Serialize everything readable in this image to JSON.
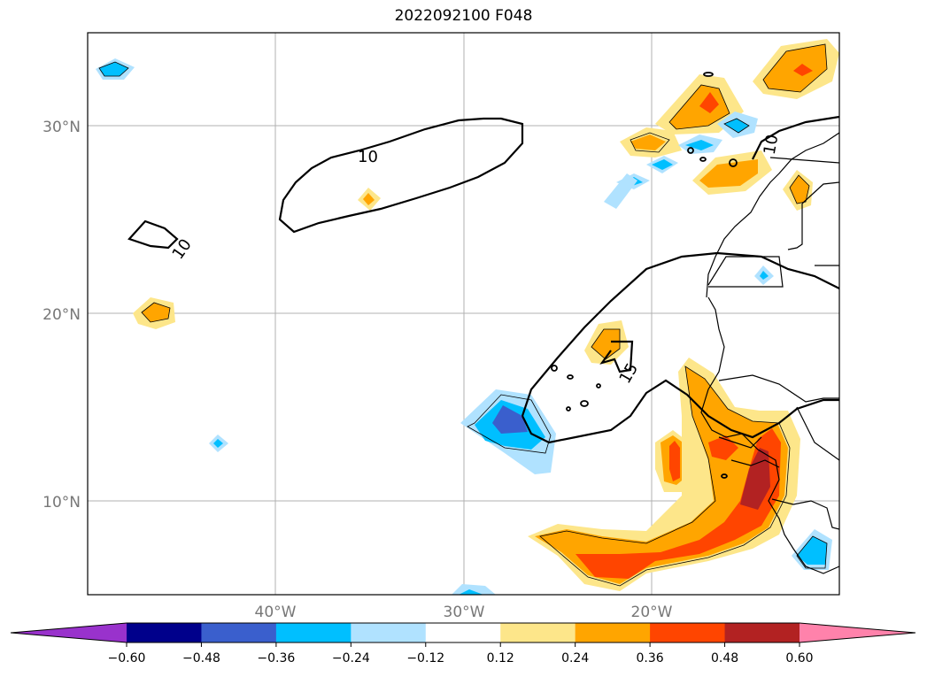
{
  "title": "2022092100 F048",
  "map": {
    "lat_ticks": [
      "30°N",
      "20°N",
      "10°N"
    ],
    "lon_ticks": [
      "40°W",
      "30°W",
      "20°W"
    ],
    "contour_labels": [
      "10",
      "10",
      "15",
      "10"
    ]
  },
  "colorbar": {
    "tick_labels": [
      "−0.60",
      "−0.48",
      "−0.36",
      "−0.24",
      "−0.12",
      "0.12",
      "0.24",
      "0.36",
      "0.48",
      "0.60"
    ],
    "bins": [
      {
        "color": "#9932cc"
      },
      {
        "color": "#00008b"
      },
      {
        "color": "#3a5fcd"
      },
      {
        "color": "#00bfff"
      },
      {
        "color": "#b0e2ff"
      },
      {
        "color": "#ffffff"
      },
      {
        "color": "#fde68a"
      },
      {
        "color": "#ffa500"
      },
      {
        "color": "#ff4500"
      },
      {
        "color": "#b22222"
      },
      {
        "color": "#ff82ab"
      }
    ]
  }
}
